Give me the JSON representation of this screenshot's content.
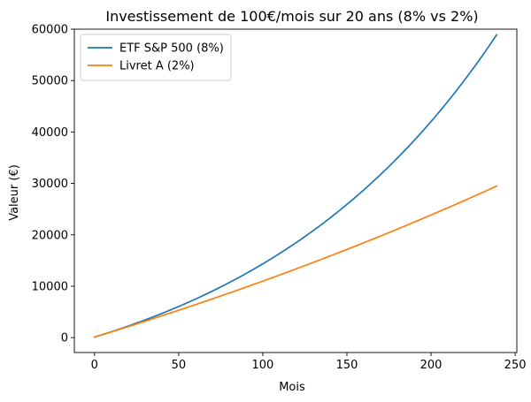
{
  "chart_data": {
    "type": "line",
    "title": "Investissement de 100€/mois sur 20 ans (8% vs 2%)",
    "xlabel": "Mois",
    "ylabel": "Valeur (€)",
    "xlim": [
      -12,
      251
    ],
    "ylim": [
      -2900,
      60000
    ],
    "xticks": [
      0,
      50,
      100,
      150,
      200,
      250
    ],
    "yticks": [
      0,
      10000,
      20000,
      30000,
      40000,
      50000,
      60000
    ],
    "grid": false,
    "legend_position": "top-left",
    "series": [
      {
        "name": "ETF S&P 500 (8%)",
        "color": "#1f77b4",
        "model": {
          "monthly_contribution": 100,
          "annual_rate": 0.08,
          "months": 240
        },
        "x": [
          0,
          20,
          40,
          60,
          80,
          100,
          120,
          140,
          160,
          180,
          200,
          220,
          239
        ],
        "values": [
          100,
          2190,
          4640,
          7380,
          10550,
          14060,
          18100,
          22690,
          28000,
          34000,
          40850,
          48630,
          57230
        ]
      },
      {
        "name": "Livret A (2%)",
        "color": "#ff7f0e",
        "model": {
          "monthly_contribution": 100,
          "annual_rate": 0.02,
          "months": 240
        },
        "x": [
          0,
          20,
          40,
          60,
          80,
          100,
          120,
          140,
          160,
          180,
          200,
          220,
          239
        ],
        "values": [
          100,
          2130,
          4190,
          6310,
          8470,
          10680,
          12950,
          15260,
          17640,
          20060,
          22540,
          25070,
          29480
        ]
      }
    ]
  }
}
